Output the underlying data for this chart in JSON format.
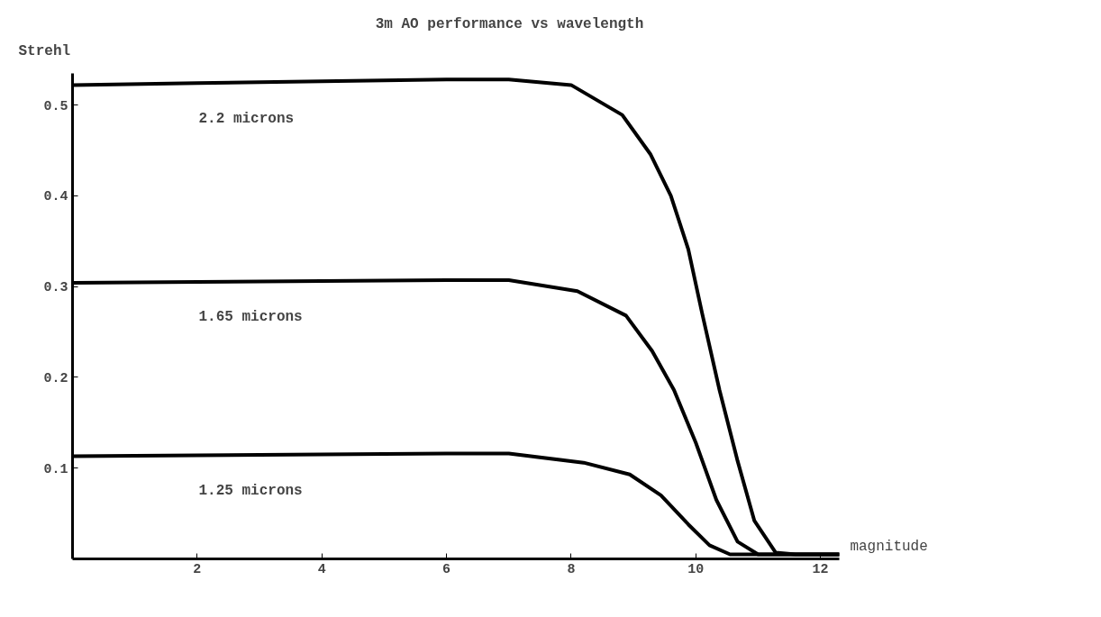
{
  "chart_data": {
    "type": "line",
    "title": "3m AO performance vs wavelength",
    "xlabel": "magnitude",
    "ylabel": "Strehl",
    "xlim": [
      0,
      12.3
    ],
    "ylim": [
      0,
      0.535
    ],
    "xticks": [
      2,
      4,
      6,
      8,
      10,
      12
    ],
    "yticks": [
      0.1,
      0.2,
      0.3,
      0.4,
      0.5
    ],
    "grid": false,
    "marker": "none",
    "line_style": "solid",
    "series": [
      {
        "color": "#000000",
        "x": [
          0,
          2,
          4,
          6,
          7,
          8,
          8.82,
          9.27,
          9.6,
          9.88,
          10.1,
          10.38,
          10.67,
          10.94,
          11.28,
          11.6,
          12.3
        ],
        "values": [
          0.522,
          0.524,
          0.526,
          0.528,
          0.528,
          0.522,
          0.489,
          0.446,
          0.4,
          0.341,
          0.271,
          0.186,
          0.108,
          0.042,
          0.007,
          0.005,
          0.005
        ]
      },
      {
        "color": "#000000",
        "x": [
          0,
          2,
          4,
          6,
          7,
          8.1,
          8.88,
          9.3,
          9.65,
          10.0,
          10.33,
          10.67,
          11.0,
          12.3
        ],
        "values": [
          0.304,
          0.305,
          0.306,
          0.307,
          0.307,
          0.295,
          0.268,
          0.229,
          0.186,
          0.128,
          0.065,
          0.019,
          0.005,
          0.005
        ]
      },
      {
        "color": "#000000",
        "x": [
          0,
          2,
          4,
          6,
          7,
          8.2,
          8.94,
          9.44,
          9.88,
          10.22,
          10.55,
          12.3
        ],
        "values": [
          0.113,
          0.114,
          0.115,
          0.116,
          0.116,
          0.106,
          0.093,
          0.07,
          0.038,
          0.015,
          0.005,
          0.005
        ]
      }
    ],
    "annotations": [
      "2.2 microns",
      "1.65 microns",
      "1.25 microns"
    ]
  }
}
